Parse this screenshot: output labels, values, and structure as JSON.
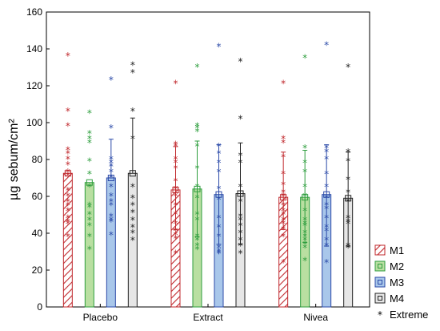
{
  "chart_data": {
    "type": "bar",
    "ylabel": "µg sebum/cm²",
    "ylim": [
      0,
      160
    ],
    "yticks": [
      0,
      20,
      40,
      60,
      80,
      100,
      120,
      140,
      160
    ],
    "grid": false,
    "legend_position": "bottom-right",
    "categories": [
      "Placebo",
      "Extract",
      "Nivea"
    ],
    "series": [
      {
        "name": "M1",
        "color": "#c0282d",
        "fill": "hatched",
        "values": [
          72.5,
          63.5,
          59.5
        ],
        "error_low": [
          null,
          42,
          42
        ],
        "error_high": [
          null,
          87,
          84
        ],
        "points": [
          [
            136,
            106,
            98,
            85,
            83,
            80,
            77,
            73,
            71,
            63,
            60,
            57,
            55,
            52,
            48,
            46,
            45,
            38
          ],
          [
            121,
            88,
            87,
            80,
            78,
            75,
            68,
            64,
            60,
            55,
            50,
            45,
            41,
            39,
            37,
            29
          ],
          [
            121,
            91,
            89,
            81,
            72,
            66,
            62,
            60,
            55,
            52,
            50,
            47,
            45,
            42,
            38,
            24
          ]
        ]
      },
      {
        "name": "M2",
        "color": "#2e9e3e",
        "fill": "#b9dfa1",
        "values": [
          67.5,
          64,
          59.5
        ],
        "error_low": [
          null,
          38,
          35
        ],
        "error_high": [
          null,
          90,
          85
        ],
        "points": [
          [
            105,
            94,
            91,
            89,
            79,
            72,
            65,
            55,
            54,
            50,
            47,
            44,
            38,
            31
          ],
          [
            130,
            98,
            97,
            95,
            87,
            75,
            65,
            59,
            50,
            47,
            38,
            36,
            33,
            31
          ],
          [
            135,
            86,
            78,
            73,
            65,
            60,
            52,
            47,
            45,
            44,
            40,
            38,
            36,
            34,
            32,
            25
          ]
        ]
      },
      {
        "name": "M3",
        "color": "#2b4aa8",
        "fill": "#a9c7ea",
        "values": [
          70,
          61,
          61
        ],
        "error_low": [
          null,
          34,
          33
        ],
        "error_high": [
          91,
          88,
          88
        ],
        "points": [
          [
            123,
            97,
            80,
            78,
            76,
            73,
            70,
            65,
            60,
            57,
            55,
            49,
            47,
            46,
            39
          ],
          [
            141,
            87,
            83,
            78,
            73,
            64,
            58,
            48,
            43,
            38,
            32,
            30,
            29,
            29
          ],
          [
            142,
            86,
            84,
            80,
            72,
            65,
            59,
            55,
            53,
            48,
            43,
            41,
            36,
            33,
            24
          ]
        ]
      },
      {
        "name": "M4",
        "color": "#222222",
        "fill": "#e6e6e6",
        "values": [
          72.5,
          61.5,
          59
        ],
        "error_low": [
          null,
          34,
          33
        ],
        "error_high": [
          102.5,
          89,
          84
        ],
        "points": [
          [
            131,
            127,
            106,
            91,
            65,
            59,
            55,
            51,
            47,
            43,
            40,
            36
          ],
          [
            133,
            102,
            82,
            78,
            65,
            57,
            49,
            47,
            44,
            40,
            36,
            33,
            29
          ],
          [
            130,
            84,
            79,
            69,
            62,
            57,
            48,
            46,
            45,
            33,
            32
          ]
        ]
      }
    ],
    "legend": [
      {
        "label": "M1",
        "swatch": "hatched",
        "color": "#c0282d"
      },
      {
        "label": "M2",
        "swatch": "box",
        "color": "#2e9e3e",
        "fill": "#b9dfa1"
      },
      {
        "label": "M3",
        "swatch": "box",
        "color": "#2b4aa8",
        "fill": "#a9c7ea"
      },
      {
        "label": "M4",
        "swatch": "box",
        "color": "#222222",
        "fill": "#e6e6e6"
      },
      {
        "label": "Extreme",
        "swatch": "star",
        "color": "#000000"
      }
    ]
  }
}
